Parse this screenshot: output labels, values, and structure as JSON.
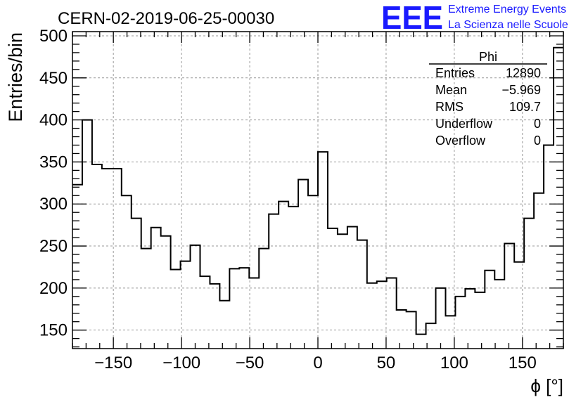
{
  "logo": {
    "text": "EEE",
    "line1": "Extreme Energy Events",
    "line2": "La Scienza nelle Scuole",
    "color": "#1a1aff"
  },
  "chart_data": {
    "type": "histogram",
    "title": "CERN-02-2019-06-25-00030",
    "xlabel": "ϕ [°]",
    "ylabel": "Entries/bin",
    "xlim": [
      -180,
      180
    ],
    "ylim": [
      128,
      505
    ],
    "bin_width": 7.2,
    "grid": true,
    "x_ticks": [
      -150,
      -100,
      -50,
      0,
      50,
      100,
      150
    ],
    "x_tick_labels": [
      "−150",
      "−100",
      "−50",
      "0",
      "50",
      "100",
      "150"
    ],
    "y_ticks": [
      150,
      200,
      250,
      300,
      350,
      400,
      450,
      500
    ],
    "y_tick_labels": [
      "150",
      "200",
      "250",
      "300",
      "350",
      "400",
      "450",
      "500"
    ],
    "values": [
      323,
      400,
      347,
      342,
      342,
      310,
      283,
      247,
      272,
      262,
      222,
      232,
      251,
      214,
      205,
      185,
      223,
      224,
      212,
      247,
      288,
      303,
      297,
      329,
      310,
      362,
      271,
      264,
      273,
      257,
      206,
      208,
      212,
      174,
      172,
      145,
      158,
      200,
      167,
      190,
      199,
      195,
      221,
      210,
      253,
      231,
      283,
      313,
      370,
      486
    ],
    "line_color": "#000000",
    "stats": {
      "title": "Phi",
      "rows": [
        {
          "label": "Entries",
          "value": "12890"
        },
        {
          "label": "Mean",
          "value": "−5.969"
        },
        {
          "label": "RMS",
          "value": "109.7"
        },
        {
          "label": "Underflow",
          "value": "0"
        },
        {
          "label": "Overflow",
          "value": "0"
        }
      ]
    }
  }
}
